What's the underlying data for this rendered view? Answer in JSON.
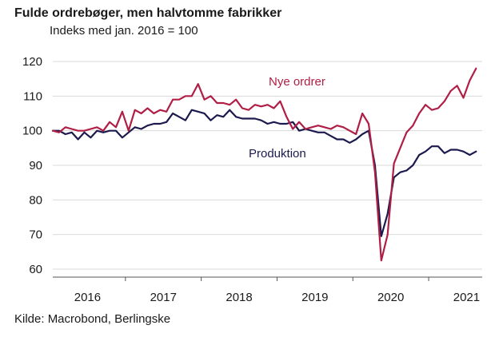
{
  "title": "Fulde ordrebøger, men halvtomme fabrikker",
  "subtitle": "Indeks med jan. 2016 = 100",
  "source": "Kilde: Macrobond, Berlingske",
  "colors": {
    "nye_ordrer": "#b01e45",
    "produktion": "#1c1a4d",
    "grid": "#d9d9d9",
    "axis": "#555555"
  },
  "chart_data": {
    "type": "line",
    "title": "Fulde ordrebøger, men halvtomme fabrikker",
    "subtitle": "Indeks med jan. 2016 = 100",
    "xlabel": "",
    "ylabel": "",
    "ylim": [
      60,
      120
    ],
    "yticks": [
      60,
      70,
      80,
      90,
      100,
      110,
      120
    ],
    "xtick_labels": [
      "2016",
      "2017",
      "2018",
      "2019",
      "2020",
      "2021"
    ],
    "x_start": "2016-01",
    "frequency": "monthly",
    "grid": true,
    "legend": "inline labels",
    "series": [
      {
        "name": "Nye ordrer",
        "values": [
          100,
          99.5,
          101,
          100.5,
          100,
          100,
          100.5,
          101,
          100,
          102.5,
          101,
          105.5,
          100,
          106,
          105,
          106.5,
          105,
          106,
          105.5,
          109,
          109,
          110,
          110,
          113.5,
          109,
          110,
          108,
          108,
          107.5,
          109,
          106.5,
          106,
          107.5,
          107,
          107.5,
          106.5,
          108.5,
          104,
          100.5,
          102.5,
          100.5,
          101,
          101.5,
          101,
          100.5,
          101.5,
          101,
          100,
          99,
          105,
          102,
          88,
          62.5,
          70,
          90.5,
          95,
          99.5,
          101.5,
          105,
          107.5,
          106,
          106.5,
          108.5,
          111.5,
          113,
          109.5,
          114.5,
          118
        ]
      },
      {
        "name": "Produktion",
        "values": [
          100,
          100,
          99,
          99.5,
          97.5,
          99.5,
          98,
          100,
          99.5,
          100,
          100,
          98,
          99.5,
          101,
          100.5,
          101.5,
          102,
          102,
          102.5,
          105,
          104,
          103,
          106,
          105.5,
          105,
          103,
          104.5,
          104,
          106,
          104,
          103.5,
          103.5,
          103.5,
          103,
          102,
          102.5,
          102,
          102,
          102.5,
          100,
          100.5,
          100,
          99.5,
          99.5,
          98.5,
          97.5,
          97.5,
          96.5,
          97.5,
          99,
          100,
          90,
          69.5,
          76,
          86.5,
          88,
          88.5,
          90,
          93,
          94,
          95.5,
          95.5,
          93.5,
          94.5,
          94.5,
          94,
          93,
          94
        ]
      }
    ],
    "annotations": [
      {
        "text": "Nye ordrer",
        "series": "Nye ordrer"
      },
      {
        "text": "Produktion",
        "series": "Produktion"
      }
    ]
  }
}
